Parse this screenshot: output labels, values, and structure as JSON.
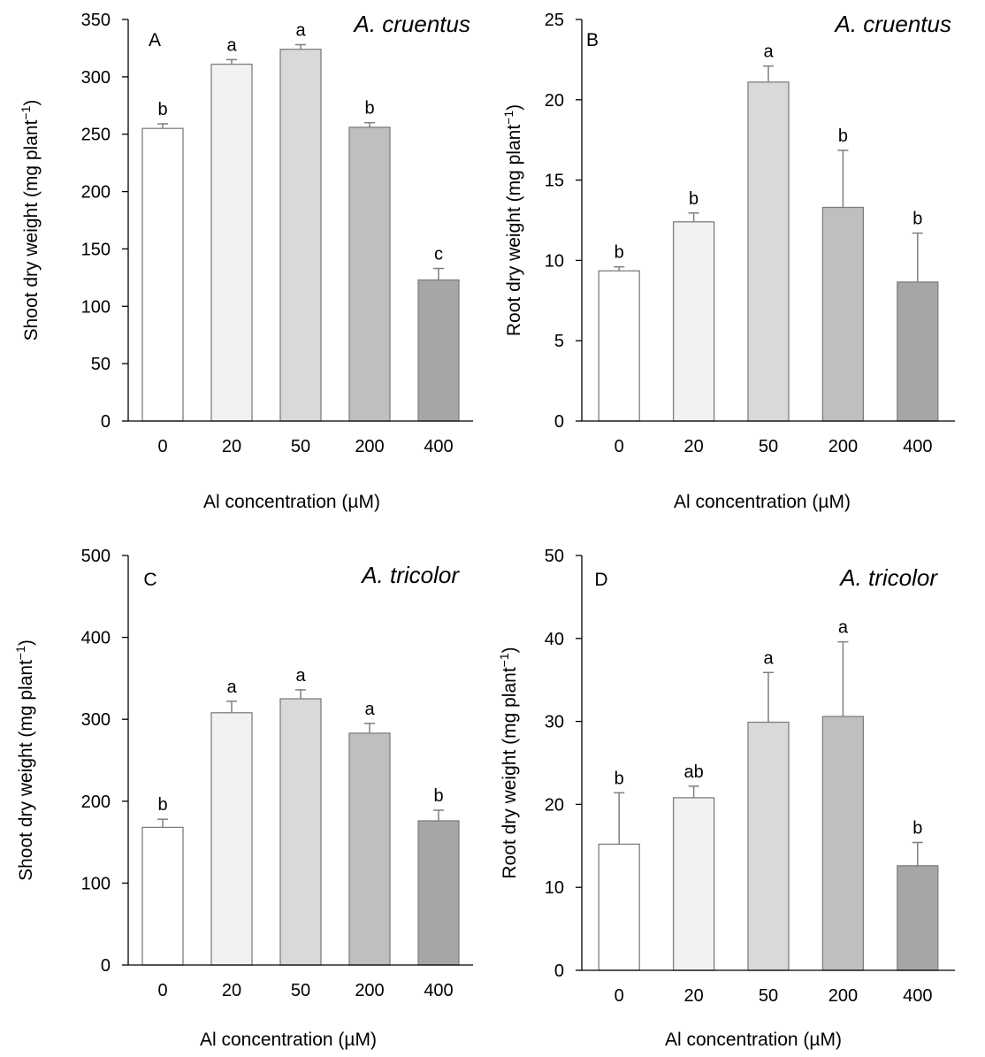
{
  "figure": {
    "bar_colors": [
      "#ffffff",
      "#f2f2f2",
      "#d9d9d9",
      "#bfbfbf",
      "#a6a6a6"
    ],
    "bar_stroke": "#7f7f7f"
  },
  "chart_data": [
    {
      "type": "bar",
      "panel": "A",
      "species": "A. cruentus",
      "xlabel": "Al concentration (µM)",
      "ylabel_main": "Shoot dry weight (mg plant",
      "ylabel_sup": "−1",
      "ylabel_tail": ")",
      "categories": [
        "0",
        "20",
        "50",
        "200",
        "400"
      ],
      "values": [
        255,
        311,
        324,
        256,
        123
      ],
      "errors": [
        4,
        4,
        4,
        4,
        10
      ],
      "letters": [
        "b",
        "a",
        "a",
        "b",
        "c"
      ],
      "ylim": [
        0,
        350
      ],
      "yticks": [
        0,
        50,
        100,
        150,
        200,
        250,
        300,
        350
      ]
    },
    {
      "type": "bar",
      "panel": "B",
      "species": "A. cruentus",
      "xlabel": "Al concentration (µM)",
      "ylabel_main": "Root dry weight (mg plant",
      "ylabel_sup": "−1",
      "ylabel_tail": ")",
      "categories": [
        "0",
        "20",
        "50",
        "200",
        "400"
      ],
      "values": [
        9.35,
        12.4,
        21.1,
        13.3,
        8.65
      ],
      "errors": [
        0.25,
        0.55,
        1.0,
        3.55,
        3.05
      ],
      "letters": [
        "b",
        "b",
        "a",
        "b",
        "b"
      ],
      "ylim": [
        0,
        25
      ],
      "yticks": [
        0,
        5,
        10,
        15,
        20,
        25
      ]
    },
    {
      "type": "bar",
      "panel": "C",
      "species": "A. tricolor",
      "xlabel": "Al concentration (µM)",
      "ylabel_main": "Shoot dry weight (mg plant",
      "ylabel_sup": "−1",
      "ylabel_tail": ")",
      "categories": [
        "0",
        "20",
        "50",
        "200",
        "400"
      ],
      "values": [
        168,
        308,
        325,
        283,
        176
      ],
      "errors": [
        10,
        14,
        11,
        12,
        13
      ],
      "letters": [
        "b",
        "a",
        "a",
        "a",
        "b"
      ],
      "ylim": [
        0,
        500
      ],
      "yticks": [
        0,
        100,
        200,
        300,
        400,
        500
      ]
    },
    {
      "type": "bar",
      "panel": "D",
      "species": "A. tricolor",
      "xlabel": "Al concentration (µM)",
      "ylabel_main": "Root dry weight (mg plant",
      "ylabel_sup": "−1",
      "ylabel_tail": ")",
      "categories": [
        "0",
        "20",
        "50",
        "200",
        "400"
      ],
      "values": [
        15.2,
        20.8,
        29.9,
        30.6,
        12.6
      ],
      "errors": [
        6.2,
        1.4,
        6.0,
        9.0,
        2.8
      ],
      "letters": [
        "b",
        "ab",
        "a",
        "a",
        "b"
      ],
      "ylim": [
        0,
        50
      ],
      "yticks": [
        0,
        10,
        20,
        30,
        40,
        50
      ]
    }
  ]
}
